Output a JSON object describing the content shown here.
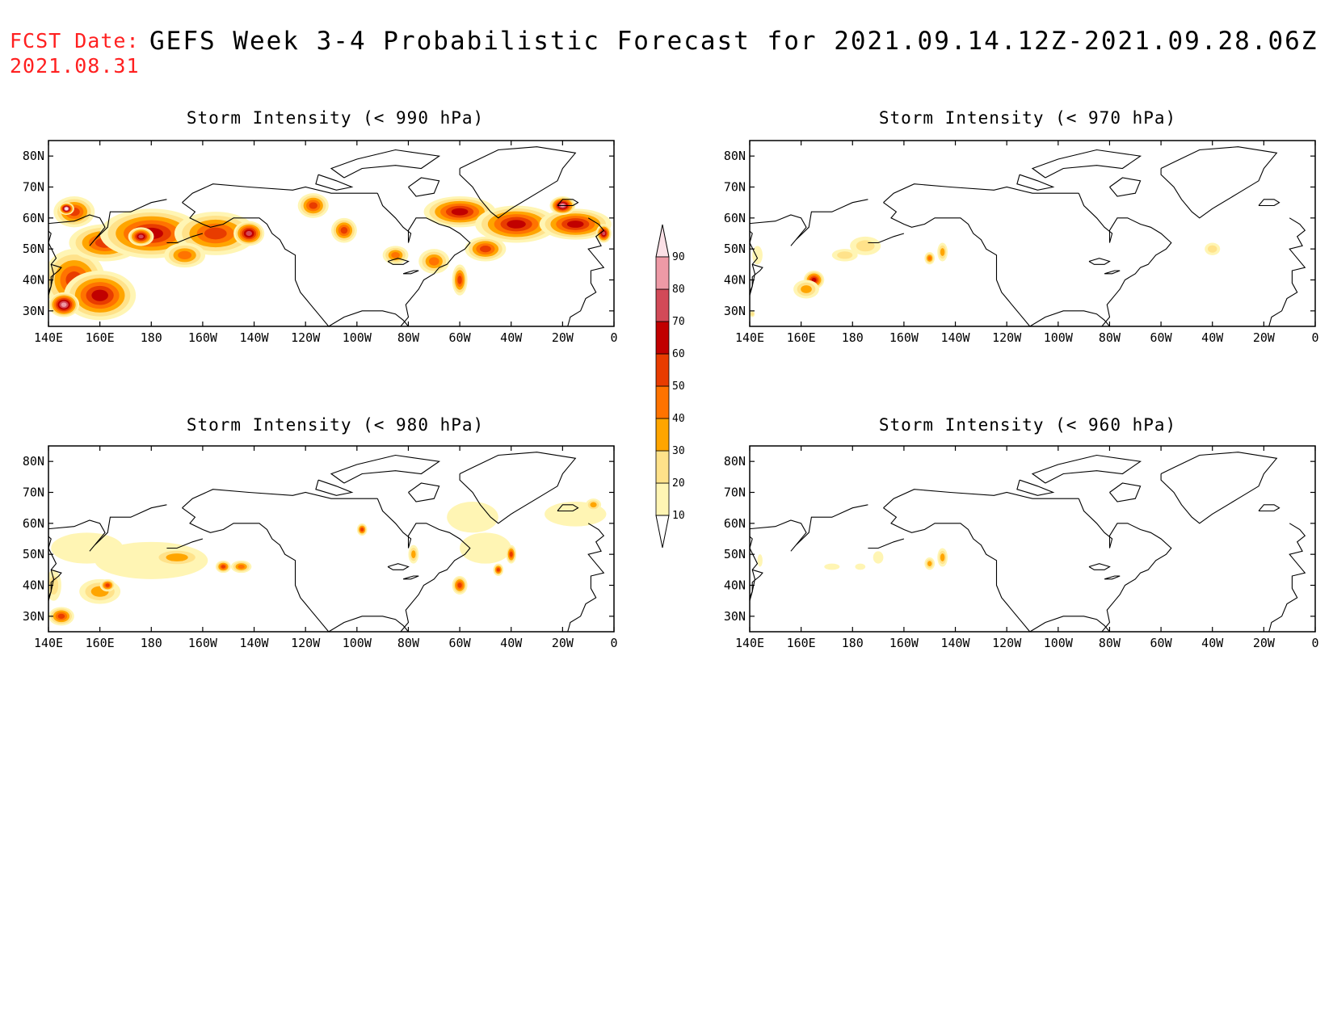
{
  "header": {
    "fcst_label": "FCST Date:",
    "fcst_date": "2021.08.31",
    "title": "GEFS Week 3-4 Probabilistic Forecast for 2021.09.14.12Z-2021.09.28.06Z"
  },
  "axes": {
    "x_ticks": [
      "140E",
      "160E",
      "180",
      "160W",
      "140W",
      "120W",
      "100W",
      "80W",
      "60W",
      "40W",
      "20W",
      "0"
    ],
    "x_tick_lon": [
      140,
      160,
      180,
      200,
      220,
      240,
      260,
      280,
      300,
      320,
      340,
      360
    ],
    "y_ticks": [
      "30N",
      "40N",
      "50N",
      "60N",
      "70N",
      "80N"
    ],
    "y_tick_lat": [
      30,
      40,
      50,
      60,
      70,
      80
    ],
    "lon_range": [
      140,
      360
    ],
    "lat_range": [
      25,
      85
    ]
  },
  "colorbar": {
    "levels": [
      "10",
      "20",
      "30",
      "40",
      "50",
      "60",
      "70",
      "80",
      "90"
    ],
    "colors": [
      "#fff5b4",
      "#ffe28a",
      "#ffa500",
      "#ff7300",
      "#e83c00",
      "#c10000",
      "#d24a58",
      "#ee9aa6",
      "#fbe0e6"
    ]
  },
  "panels": [
    {
      "id": "p990",
      "title": "Storm Intensity (< 990 hPa)",
      "blobs": [
        {
          "lon": 150,
          "lat": 40,
          "rx": 12,
          "ry": 10,
          "level": 5
        },
        {
          "lon": 160,
          "lat": 35,
          "rx": 14,
          "ry": 8,
          "level": 6
        },
        {
          "lon": 146,
          "lat": 32,
          "rx": 6,
          "ry": 4,
          "level": 8
        },
        {
          "lon": 162,
          "lat": 52,
          "rx": 14,
          "ry": 6,
          "level": 5
        },
        {
          "lon": 180,
          "lat": 55,
          "rx": 20,
          "ry": 8,
          "level": 6
        },
        {
          "lon": 176,
          "lat": 54,
          "rx": 5,
          "ry": 3,
          "level": 7
        },
        {
          "lon": 205,
          "lat": 55,
          "rx": 16,
          "ry": 7,
          "level": 5
        },
        {
          "lon": 218,
          "lat": 55,
          "rx": 6,
          "ry": 4,
          "level": 7
        },
        {
          "lon": 193,
          "lat": 48,
          "rx": 8,
          "ry": 4,
          "level": 4
        },
        {
          "lon": 150,
          "lat": 62,
          "rx": 8,
          "ry": 5,
          "level": 5
        },
        {
          "lon": 147,
          "lat": 63,
          "rx": 3,
          "ry": 2,
          "level": 9
        },
        {
          "lon": 243,
          "lat": 64,
          "rx": 6,
          "ry": 4,
          "level": 5
        },
        {
          "lon": 255,
          "lat": 56,
          "rx": 5,
          "ry": 4,
          "level": 5
        },
        {
          "lon": 275,
          "lat": 48,
          "rx": 5,
          "ry": 3,
          "level": 4
        },
        {
          "lon": 300,
          "lat": 62,
          "rx": 14,
          "ry": 5,
          "level": 6
        },
        {
          "lon": 322,
          "lat": 58,
          "rx": 16,
          "ry": 6,
          "level": 6
        },
        {
          "lon": 345,
          "lat": 58,
          "rx": 14,
          "ry": 5,
          "level": 6
        },
        {
          "lon": 340,
          "lat": 64,
          "rx": 5,
          "ry": 3,
          "level": 8
        },
        {
          "lon": 356,
          "lat": 55,
          "rx": 3,
          "ry": 3,
          "level": 7
        },
        {
          "lon": 310,
          "lat": 50,
          "rx": 8,
          "ry": 4,
          "level": 5
        },
        {
          "lon": 290,
          "lat": 46,
          "rx": 6,
          "ry": 4,
          "level": 4
        },
        {
          "lon": 300,
          "lat": 40,
          "rx": 3,
          "ry": 5,
          "level": 5
        }
      ]
    },
    {
      "id": "p970",
      "title": "Storm Intensity (< 970 hPa)",
      "blobs": [
        {
          "lon": 165,
          "lat": 40,
          "rx": 4,
          "ry": 3,
          "level": 6
        },
        {
          "lon": 162,
          "lat": 37,
          "rx": 5,
          "ry": 3,
          "level": 3
        },
        {
          "lon": 177,
          "lat": 48,
          "rx": 5,
          "ry": 2,
          "level": 2
        },
        {
          "lon": 185,
          "lat": 51,
          "rx": 6,
          "ry": 3,
          "level": 2
        },
        {
          "lon": 210,
          "lat": 47,
          "rx": 2,
          "ry": 2,
          "level": 4
        },
        {
          "lon": 215,
          "lat": 49,
          "rx": 2,
          "ry": 3,
          "level": 3
        },
        {
          "lon": 320,
          "lat": 50,
          "rx": 3,
          "ry": 2,
          "level": 2
        },
        {
          "lon": 143,
          "lat": 48,
          "rx": 2,
          "ry": 3,
          "level": 1
        },
        {
          "lon": 141,
          "lat": 29,
          "rx": 1,
          "ry": 1,
          "level": 2
        }
      ]
    },
    {
      "id": "p980",
      "title": "Storm Intensity (< 980 hPa)",
      "blobs": [
        {
          "lon": 155,
          "lat": 52,
          "rx": 14,
          "ry": 5,
          "level": 1
        },
        {
          "lon": 180,
          "lat": 48,
          "rx": 22,
          "ry": 6,
          "level": 1
        },
        {
          "lon": 190,
          "lat": 49,
          "rx": 10,
          "ry": 3,
          "level": 3
        },
        {
          "lon": 215,
          "lat": 46,
          "rx": 4,
          "ry": 2,
          "level": 4
        },
        {
          "lon": 208,
          "lat": 46,
          "rx": 3,
          "ry": 2,
          "level": 5
        },
        {
          "lon": 160,
          "lat": 38,
          "rx": 8,
          "ry": 4,
          "level": 3
        },
        {
          "lon": 163,
          "lat": 40,
          "rx": 3,
          "ry": 2,
          "level": 5
        },
        {
          "lon": 145,
          "lat": 30,
          "rx": 5,
          "ry": 3,
          "level": 5
        },
        {
          "lon": 142,
          "lat": 40,
          "rx": 3,
          "ry": 5,
          "level": 2
        },
        {
          "lon": 305,
          "lat": 62,
          "rx": 10,
          "ry": 5,
          "level": 1
        },
        {
          "lon": 345,
          "lat": 63,
          "rx": 12,
          "ry": 4,
          "level": 1
        },
        {
          "lon": 352,
          "lat": 66,
          "rx": 3,
          "ry": 2,
          "level": 3
        },
        {
          "lon": 310,
          "lat": 52,
          "rx": 10,
          "ry": 5,
          "level": 1
        },
        {
          "lon": 300,
          "lat": 40,
          "rx": 3,
          "ry": 3,
          "level": 5
        },
        {
          "lon": 320,
          "lat": 50,
          "rx": 2,
          "ry": 3,
          "level": 5
        },
        {
          "lon": 315,
          "lat": 45,
          "rx": 2,
          "ry": 2,
          "level": 5
        },
        {
          "lon": 262,
          "lat": 58,
          "rx": 2,
          "ry": 2,
          "level": 5
        },
        {
          "lon": 282,
          "lat": 50,
          "rx": 2,
          "ry": 3,
          "level": 3
        }
      ]
    },
    {
      "id": "p960",
      "title": "Storm Intensity (< 960 hPa)",
      "blobs": [
        {
          "lon": 210,
          "lat": 47,
          "rx": 2,
          "ry": 2,
          "level": 3
        },
        {
          "lon": 215,
          "lat": 49,
          "rx": 2,
          "ry": 3,
          "level": 3
        },
        {
          "lon": 172,
          "lat": 46,
          "rx": 3,
          "ry": 1,
          "level": 1
        },
        {
          "lon": 183,
          "lat": 46,
          "rx": 2,
          "ry": 1,
          "level": 1
        },
        {
          "lon": 144,
          "lat": 48,
          "rx": 1,
          "ry": 2,
          "level": 1
        },
        {
          "lon": 190,
          "lat": 49,
          "rx": 2,
          "ry": 2,
          "level": 1
        }
      ]
    }
  ]
}
